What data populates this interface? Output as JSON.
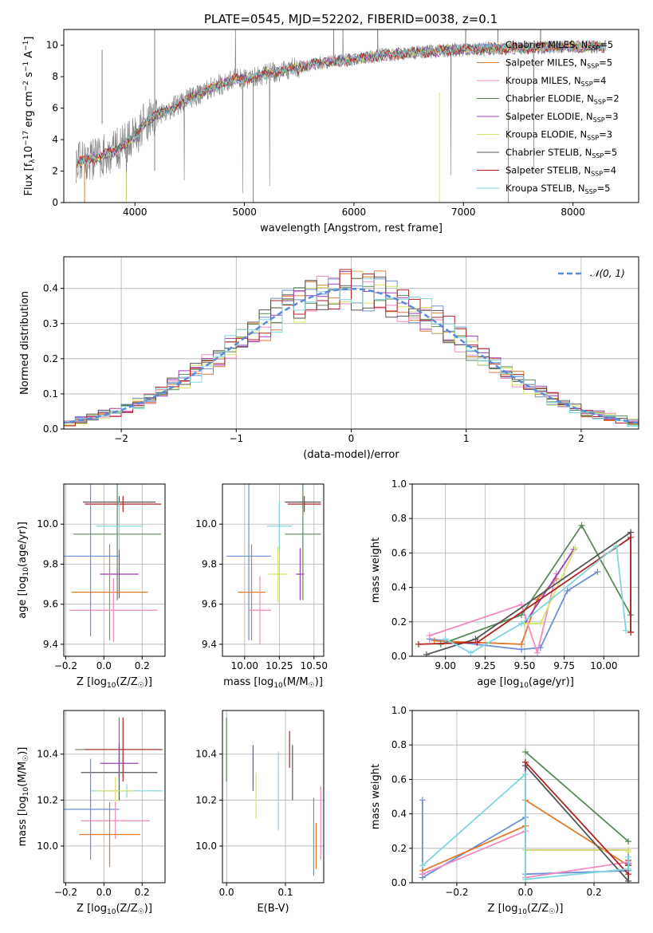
{
  "figure_title": "PLATE=0545, MJD=52202, FIBERID=0038, z=0.1",
  "model_names": [
    "Chabrier MILES",
    "Salpeter MILES",
    "Kroupa MILES",
    "Chabrier ELODIE",
    "Salpeter ELODIE",
    "Kroupa ELODIE",
    "Chabrier STELIB",
    "Salpeter STELIB",
    "Kroupa STELIB"
  ],
  "model_colors": [
    "#6a8fd8",
    "#e07a2b",
    "#f08ac0",
    "#5a8a5a",
    "#9b3fb8",
    "#d8e36a",
    "#555555",
    "#b22222",
    "#7fd6dc"
  ],
  "chart_data": [
    {
      "id": "spectrum",
      "type": "line",
      "xlabel": "wavelength [Angstrom, rest frame]",
      "ylabel": "Flux [f_λ10^-17 erg cm^-2 s^-1 A^-1]",
      "xlim": [
        3350,
        8600
      ],
      "ylim": [
        0,
        11
      ],
      "xticks": [
        4000,
        5000,
        6000,
        7000,
        8000
      ],
      "yticks": [
        0,
        2,
        4,
        6,
        8,
        10
      ],
      "grid": false,
      "legend_placement": "right",
      "legend": [
        {
          "label": "Chabrier MILES",
          "nssp": "5"
        },
        {
          "label": "Salpeter MILES",
          "nssp": "5"
        },
        {
          "label": "Kroupa MILES",
          "nssp": "4"
        },
        {
          "label": "Chabrier ELODIE",
          "nssp": "2"
        },
        {
          "label": "Salpeter ELODIE",
          "nssp": "3"
        },
        {
          "label": "Kroupa ELODIE",
          "nssp": "3"
        },
        {
          "label": "Chabrier STELIB",
          "nssp": "5"
        },
        {
          "label": "Salpeter STELIB",
          "nssp": "4"
        },
        {
          "label": "Kroupa STELIB",
          "nssp": "5"
        }
      ],
      "data_color": "#808080",
      "continuum_x": [
        3450,
        3600,
        3800,
        4000,
        4100,
        4300,
        4500,
        4700,
        4900,
        5100,
        5300,
        5500,
        5700,
        5900,
        6100,
        6300,
        6500,
        6700,
        6900,
        7100,
        7300,
        7500,
        7700,
        7900,
        8100,
        8300
      ],
      "continuum_y": [
        2.5,
        2.8,
        3.2,
        4.2,
        5.2,
        5.9,
        6.6,
        7.3,
        7.8,
        8.0,
        8.3,
        8.6,
        8.9,
        9.0,
        9.2,
        9.4,
        9.5,
        9.6,
        9.7,
        9.75,
        9.8,
        9.8,
        9.85,
        9.9,
        9.9,
        9.9
      ]
    },
    {
      "id": "residuals",
      "type": "histogram",
      "xlabel": "(data-model)/error",
      "ylabel": "Normed distribution",
      "xlim": [
        -2.5,
        2.5
      ],
      "ylim": [
        0,
        0.49
      ],
      "xticks": [
        -2,
        -1,
        0,
        1,
        2
      ],
      "yticks": [
        0.0,
        0.1,
        0.2,
        0.3,
        0.4
      ],
      "grid": true,
      "legend_placement": "top-right",
      "legend": [
        {
          "label": "N(0,1)"
        }
      ],
      "bin_width": 0.1,
      "gaussian_color": "#5a8ad8"
    },
    {
      "id": "age-vs-Z",
      "type": "errorbar",
      "xlabel": "Z [log10(Z/Z☉)]",
      "ylabel": "age [log10(age/yr)]",
      "xlim": [
        -0.21,
        0.32
      ],
      "ylim": [
        9.34,
        10.2
      ],
      "xticks": [
        -0.2,
        0.0,
        0.2
      ],
      "yticks": [
        9.4,
        9.6,
        9.8,
        10.0
      ],
      "grid": true,
      "points": [
        {
          "x": 0.08,
          "y": 10.11,
          "xerr": 0.19,
          "yerr": 0.03
        },
        {
          "x": 0.1,
          "y": 10.1,
          "xerr": 0.2,
          "yerr": 0.04
        },
        {
          "x": 0.07,
          "y": 9.95,
          "xerr": 0.23,
          "yerr": 0.33
        },
        {
          "x": 0.08,
          "y": 9.99,
          "xerr": 0.12,
          "yerr": 0.12
        },
        {
          "x": -0.07,
          "y": 9.84,
          "xerr": 0.15,
          "yerr": 0.4
        },
        {
          "x": 0.08,
          "y": 9.75,
          "xerr": 0.1,
          "yerr": 0.12
        },
        {
          "x": 0.08,
          "y": 9.75,
          "xerr": 0.1,
          "yerr": 0.12
        },
        {
          "x": 0.03,
          "y": 9.66,
          "xerr": 0.2,
          "yerr": 0.24
        },
        {
          "x": 0.05,
          "y": 9.57,
          "xerr": 0.23,
          "yerr": 0.16
        }
      ],
      "point_colors": [
        "#555555",
        "#b22222",
        "#5a8a5a",
        "#7fd6dc",
        "#6a8fd8",
        "#d8e36a",
        "#9b3fb8",
        "#e07a2b",
        "#f08ac0"
      ]
    },
    {
      "id": "age-vs-mass",
      "type": "errorbar",
      "xlabel": "mass [log10(M/M☉)]",
      "ylabel": "",
      "xlim": [
        9.84,
        10.57
      ],
      "ylim": [
        9.34,
        10.2
      ],
      "xticks": [
        10.0,
        10.25,
        10.5
      ],
      "yticks": [
        9.4,
        9.6,
        9.8,
        10.0
      ],
      "grid": true,
      "points": [
        {
          "x": 10.42,
          "y": 10.11,
          "xerr": 0.13,
          "yerr": 0.03
        },
        {
          "x": 10.43,
          "y": 10.1,
          "xerr": 0.12,
          "yerr": 0.04
        },
        {
          "x": 10.42,
          "y": 9.95,
          "xerr": 0.13,
          "yerr": 0.33
        },
        {
          "x": 10.25,
          "y": 9.99,
          "xerr": 0.09,
          "yerr": 0.12
        },
        {
          "x": 10.03,
          "y": 9.84,
          "xerr": 0.16,
          "yerr": 0.42
        },
        {
          "x": 10.24,
          "y": 9.75,
          "xerr": 0.07,
          "yerr": 0.14
        },
        {
          "x": 10.4,
          "y": 9.75,
          "xerr": 0.03,
          "yerr": 0.13
        },
        {
          "x": 10.05,
          "y": 9.66,
          "xerr": 0.1,
          "yerr": 0.24
        },
        {
          "x": 10.11,
          "y": 9.57,
          "xerr": 0.08,
          "yerr": 0.17
        }
      ],
      "point_colors": [
        "#555555",
        "#b22222",
        "#5a8a5a",
        "#7fd6dc",
        "#6a8fd8",
        "#d8e36a",
        "#9b3fb8",
        "#e07a2b",
        "#f08ac0"
      ]
    },
    {
      "id": "mass-weight-vs-age",
      "type": "line",
      "xlabel": "age [log10(age/yr)]",
      "ylabel": "mass weight",
      "xlim": [
        8.79,
        10.22
      ],
      "ylim": [
        0,
        1
      ],
      "xticks": [
        9.0,
        9.25,
        9.5,
        9.75,
        10.0
      ],
      "yticks": [
        0.0,
        0.2,
        0.4,
        0.6,
        0.8,
        1.0
      ],
      "grid": true,
      "series": [
        {
          "x": [
            8.9,
            9.48,
            9.6,
            9.77,
            9.96
          ],
          "y": [
            0.1,
            0.04,
            0.05,
            0.38,
            0.49
          ]
        },
        {
          "x": [
            8.93,
            9.48,
            9.58,
            9.7
          ],
          "y": [
            0.09,
            0.07,
            0.33,
            0.45
          ]
        },
        {
          "x": [
            8.9,
            9.48,
            9.58,
            9.7
          ],
          "y": [
            0.12,
            0.3,
            0.02,
            0.48
          ]
        },
        {
          "x": [
            8.97,
            9.48,
            9.86,
            10.17
          ],
          "y": [
            0.07,
            0.24,
            0.76,
            0.24
          ]
        },
        {
          "x": [
            9.5,
            9.81
          ],
          "y": [
            0.19,
            0.62
          ]
        },
        {
          "x": [
            9.5,
            9.6,
            9.82
          ],
          "y": [
            0.19,
            0.19,
            0.63
          ]
        },
        {
          "x": [
            8.88,
            9.19,
            10.17,
            10.17
          ],
          "y": [
            0.01,
            0.1,
            0.72,
            0.14
          ]
        },
        {
          "x": [
            8.83,
            9.2,
            10.17,
            10.17
          ],
          "y": [
            0.07,
            0.08,
            0.69,
            0.14
          ]
        },
        {
          "x": [
            9.0,
            9.16,
            9.48,
            10.08,
            10.14
          ],
          "y": [
            0.1,
            0.02,
            0.19,
            0.64,
            0.15
          ]
        }
      ]
    },
    {
      "id": "mass-vs-Z",
      "type": "errorbar",
      "xlabel": "Z [log10(Z/Z☉)]",
      "ylabel": "mass [log10(M/M☉)]",
      "xlim": [
        -0.21,
        0.32
      ],
      "ylim": [
        9.84,
        10.59
      ],
      "xticks": [
        -0.2,
        0.0,
        0.2
      ],
      "yticks": [
        10.0,
        10.2,
        10.4
      ],
      "grid": true,
      "points": [
        {
          "x": 0.08,
          "y": 10.42,
          "xerr": 0.23,
          "yerr": 0.14
        },
        {
          "x": 0.1,
          "y": 10.42,
          "xerr": 0.2,
          "yerr": 0.14
        },
        {
          "x": 0.08,
          "y": 10.32,
          "xerr": 0.2,
          "yerr": 0.12
        },
        {
          "x": 0.08,
          "y": 10.36,
          "xerr": 0.1,
          "yerr": 0.09
        },
        {
          "x": 0.12,
          "y": 10.24,
          "xerr": 0.19,
          "yerr": 0.03
        },
        {
          "x": 0.06,
          "y": 10.24,
          "xerr": 0.1,
          "yerr": 0.06
        },
        {
          "x": -0.07,
          "y": 10.16,
          "xerr": 0.15,
          "yerr": 0.22
        },
        {
          "x": 0.06,
          "y": 10.11,
          "xerr": 0.18,
          "yerr": 0.08
        },
        {
          "x": 0.03,
          "y": 10.05,
          "xerr": 0.16,
          "yerr": 0.14
        }
      ],
      "point_colors": [
        "#5a8a5a",
        "#b22222",
        "#555555",
        "#9b3fb8",
        "#7fd6dc",
        "#d8e36a",
        "#6a8fd8",
        "#f08ac0",
        "#e07a2b"
      ]
    },
    {
      "id": "mass-vs-EBV",
      "type": "errorbar",
      "xlabel": "E(B-V)",
      "ylabel": "",
      "xlim": [
        -0.007,
        0.165
      ],
      "ylim": [
        9.84,
        10.59
      ],
      "xticks": [
        0.0,
        0.1
      ],
      "yticks": [
        10.0,
        10.2,
        10.4
      ],
      "grid": true,
      "points": [
        {
          "x": 0.0,
          "y": 10.42,
          "xerr": 0,
          "yerr": 0.14
        },
        {
          "x": 0.045,
          "y": 10.34,
          "xerr": 0,
          "yerr": 0.1
        },
        {
          "x": 0.05,
          "y": 10.22,
          "xerr": 0,
          "yerr": 0.1
        },
        {
          "x": 0.088,
          "y": 10.24,
          "xerr": 0,
          "yerr": 0.17
        },
        {
          "x": 0.107,
          "y": 10.42,
          "xerr": 0,
          "yerr": 0.08
        },
        {
          "x": 0.112,
          "y": 10.32,
          "xerr": 0,
          "yerr": 0.12
        },
        {
          "x": 0.148,
          "y": 10.04,
          "xerr": 0,
          "yerr": 0.17
        },
        {
          "x": 0.152,
          "y": 10.0,
          "xerr": 0,
          "yerr": 0.1
        },
        {
          "x": 0.16,
          "y": 10.1,
          "xerr": 0,
          "yerr": 0.16
        }
      ],
      "point_colors": [
        "#5a8a5a",
        "#9b3fb8",
        "#d8e36a",
        "#7fd6dc",
        "#b22222",
        "#555555",
        "#6a8fd8",
        "#e07a2b",
        "#f08ac0"
      ]
    },
    {
      "id": "mass-weight-vs-Z",
      "type": "line",
      "xlabel": "Z [log10(Z/Z☉)]",
      "ylabel": "mass weight",
      "xlim": [
        -0.33,
        0.33
      ],
      "ylim": [
        0,
        1
      ],
      "xticks": [
        -0.2,
        0.0,
        0.2
      ],
      "yticks": [
        0.0,
        0.2,
        0.4,
        0.6,
        0.8,
        1.0
      ],
      "grid": true,
      "series": [
        {
          "x": [
            -0.3,
            -0.3,
            -0.3,
            0.0,
            0.0,
            0.3
          ],
          "y": [
            0.48,
            0.05,
            0.03,
            0.38,
            0.05,
            0.07
          ]
        },
        {
          "x": [
            -0.3,
            0.0,
            0.0,
            0.3,
            0.3
          ],
          "y": [
            0.07,
            0.33,
            0.48,
            0.1,
            0.08
          ]
        },
        {
          "x": [
            -0.3,
            0.0,
            0.0,
            0.3
          ],
          "y": [
            0.05,
            0.3,
            0.03,
            0.12
          ]
        },
        {
          "x": [
            0.0,
            0.3
          ],
          "y": [
            0.76,
            0.24
          ]
        },
        {
          "x": [
            0.0,
            0.0,
            0.3,
            0.3
          ],
          "y": [
            0.7,
            0.19,
            0.19,
            0.11
          ]
        },
        {
          "x": [
            0.0,
            0.3,
            0.3
          ],
          "y": [
            0.19,
            0.19,
            0.18
          ]
        },
        {
          "x": [
            0.0,
            0.3,
            0.3
          ],
          "y": [
            0.68,
            0.01,
            0.1
          ]
        },
        {
          "x": [
            0.0,
            0.3,
            0.3
          ],
          "y": [
            0.7,
            0.05,
            0.13
          ]
        },
        {
          "x": [
            -0.3,
            0.0,
            0.0,
            0.3,
            0.3
          ],
          "y": [
            0.1,
            0.63,
            0.02,
            0.08,
            0.15
          ]
        }
      ]
    }
  ]
}
